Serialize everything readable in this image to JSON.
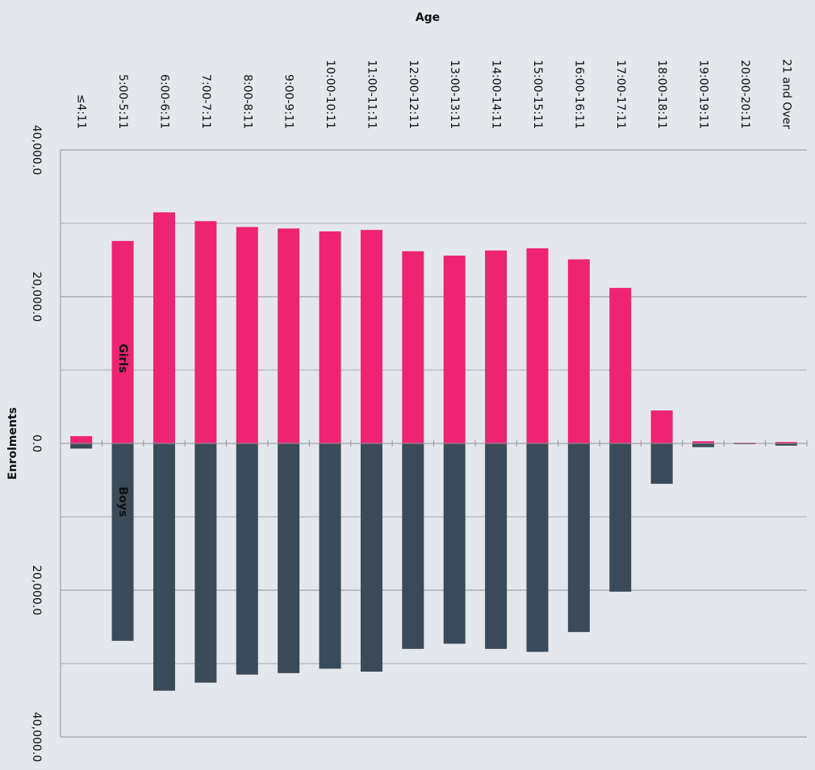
{
  "chart_data": {
    "type": "diverging-bar",
    "x_axis_title": "Age",
    "y_axis_title": "Enrolments",
    "categories": [
      "≤4:11",
      "5:00-5:11",
      "6:00-6:11",
      "7:00-7:11",
      "8:00-8:11",
      "9:00-9:11",
      "10:00-10:11",
      "11:00-11:11",
      "12:00-12:11",
      "13:00-13:11",
      "14:00-14:11",
      "15:00-15:11",
      "16:00-16:11",
      "17:00-17:11",
      "18:00-18:11",
      "19:00-19:11",
      "20:00-20:11",
      "21 and Over"
    ],
    "series": [
      {
        "name": "Girls",
        "color": "#ee2472",
        "values": [
          1000,
          27600,
          31500,
          30300,
          29500,
          29300,
          28900,
          29100,
          26200,
          25600,
          26300,
          26600,
          25100,
          21200,
          4500,
          300,
          100,
          200
        ]
      },
      {
        "name": "Boys",
        "color": "#3a4a58",
        "values": [
          -700,
          -26900,
          -33700,
          -32600,
          -31500,
          -31300,
          -30700,
          -31100,
          -28000,
          -27300,
          -28000,
          -28400,
          -25700,
          -20200,
          -5500,
          -500,
          -100,
          -300
        ]
      }
    ],
    "ylim": [
      -40000,
      40000
    ],
    "yticks": [
      {
        "value": 40000,
        "label": "40,000.0"
      },
      {
        "value": 20000,
        "label": "20,000.0"
      },
      {
        "value": 0,
        "label": "0.0"
      },
      {
        "value": -20000,
        "label": "20,000.0"
      },
      {
        "value": -40000,
        "label": "40,000.0"
      }
    ],
    "minor_grid": [
      30000,
      10000,
      -10000,
      -30000
    ],
    "positive_tick_color": "#e8221b",
    "grid": true
  }
}
